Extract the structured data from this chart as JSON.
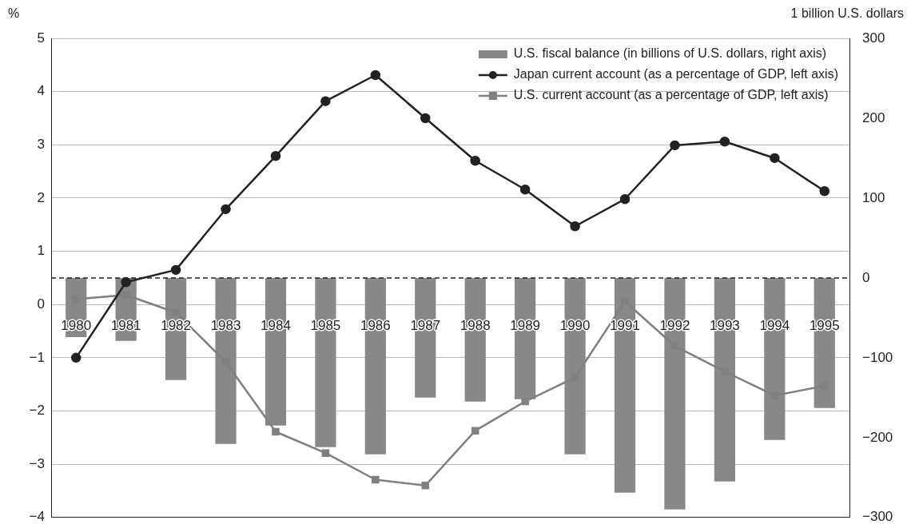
{
  "chart_data": {
    "type": "line",
    "ylabel": "%",
    "y2label": "1 billion U.S. dollars",
    "categories": [
      "1980",
      "1981",
      "1982",
      "1983",
      "1984",
      "1985",
      "1986",
      "1987",
      "1988",
      "1989",
      "1990",
      "1991",
      "1992",
      "1993",
      "1994",
      "1995"
    ],
    "series": [
      {
        "type": "bar",
        "axis": "y2",
        "name": "U.S. fiscal balance (in billions of U.S. dollars, right axis)",
        "color": "#888888",
        "values": [
          -74,
          -79,
          -128,
          -208,
          -185,
          -212,
          -221,
          -150,
          -155,
          -152,
          -221,
          -269,
          -290,
          -255,
          -203,
          -163
        ]
      },
      {
        "marker": "circle",
        "name": "Japan current account (as a percentage of GDP, left axis)",
        "color": "#222222",
        "values": [
          -1.0,
          0.42,
          0.65,
          1.79,
          2.79,
          3.82,
          4.31,
          3.5,
          2.7,
          2.16,
          1.47,
          1.98,
          2.99,
          3.06,
          2.75,
          2.13
        ]
      },
      {
        "marker": "square",
        "name": "U.S. current account (as a percentage of GDP, left axis)",
        "color": "#808080",
        "values": [
          0.1,
          0.18,
          -0.15,
          -1.08,
          -2.39,
          -2.79,
          -3.29,
          -3.4,
          -2.37,
          -1.82,
          -1.37,
          0.06,
          -0.78,
          -1.26,
          -1.71,
          -1.53
        ]
      }
    ],
    "ylim": [
      -4,
      5
    ],
    "yticks": [
      -4,
      -3,
      -2,
      -1,
      0,
      1,
      2,
      3,
      4,
      5
    ],
    "y2lim": [
      -300,
      300
    ],
    "y2ticks": [
      -300,
      -200,
      -100,
      0,
      100,
      200,
      300
    ],
    "ref_lines": [
      {
        "axis": "y2",
        "value": 0,
        "line_style": "dashed",
        "color": "#222222"
      }
    ],
    "grid": "y",
    "legend": "top right"
  }
}
